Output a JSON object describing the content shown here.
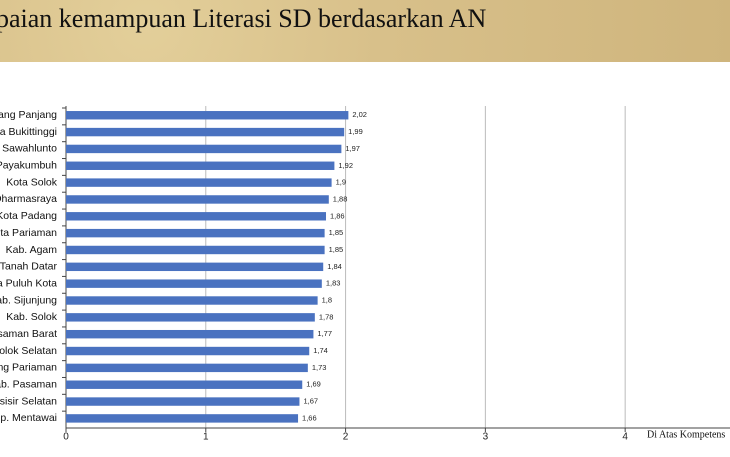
{
  "chart_data": {
    "type": "hbar",
    "title": "paian kemampuan Literasi SD berdasarkan AN",
    "categories": [
      "dang Panjang",
      "ota Bukittinggi",
      "a Sawahlunto",
      "Payakumbuh",
      "Kota Solok",
      "Dharmasraya",
      "Kota Padang",
      "ota Pariaman",
      "Kab. Agam",
      ". Tanah Datar",
      "ma Puluh Kota",
      "Kab. Sijunjung",
      "Kab. Solok",
      "asaman Barat",
      "Solok Selatan",
      "dang Pariaman",
      "Kab. Pasaman",
      "esisir Selatan",
      "ep. Mentawai"
    ],
    "values": [
      2.02,
      1.99,
      1.97,
      1.92,
      1.9,
      1.88,
      1.86,
      1.85,
      1.85,
      1.84,
      1.83,
      1.8,
      1.78,
      1.77,
      1.74,
      1.73,
      1.69,
      1.67,
      1.66
    ],
    "value_labels": [
      "2,02",
      "1,99",
      "1,97",
      "1,92",
      "1,9",
      "1,88",
      "1,86",
      "1,85",
      "1,85",
      "1,84",
      "1,83",
      "1,8",
      "1,78",
      "1,77",
      "1,74",
      "1,73",
      "1,69",
      "1,67",
      "1,66"
    ],
    "color": "#4a72c0",
    "xlim": [
      0,
      4.75
    ],
    "xticks": [
      0,
      1,
      2,
      3,
      4
    ],
    "grid": true,
    "annotation": "Di Atas Kompetens"
  }
}
